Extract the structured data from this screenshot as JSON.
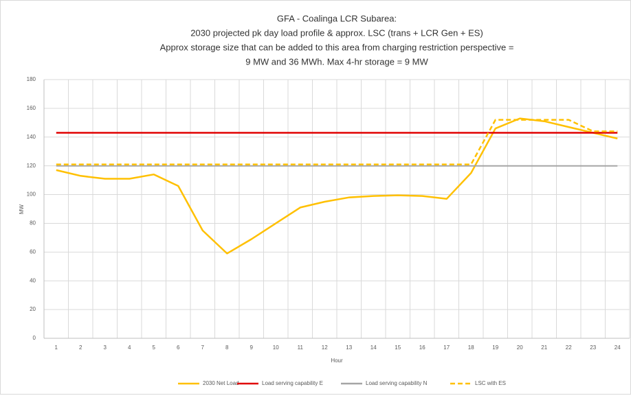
{
  "chart_data": {
    "type": "line",
    "title": [
      "GFA - Coalinga LCR Subarea:",
      "2030 projected pk day load profile & approx. LSC (trans + LCR Gen + ES)",
      "Approx storage size that can be added to this area from charging restriction perspective =",
      "9 MW and 36 MWh. Max 4-hr storage = 9 MW"
    ],
    "xlabel": "Hour",
    "ylabel": "MW",
    "categories": [
      "1",
      "2",
      "3",
      "4",
      "5",
      "6",
      "7",
      "8",
      "9",
      "10",
      "11",
      "12",
      "13",
      "14",
      "15",
      "16",
      "17",
      "18",
      "19",
      "20",
      "21",
      "22",
      "23",
      "24"
    ],
    "series": [
      {
        "name": "2030 Net Load",
        "color": "#ffc000",
        "values": [
          117,
          113,
          111,
          111,
          114,
          106,
          75,
          59,
          69,
          80,
          91,
          95,
          98,
          99,
          99.5,
          99,
          97,
          115,
          146,
          153,
          151,
          147,
          143,
          139
        ]
      },
      {
        "name": "Load serving capability E",
        "color": "#e00000",
        "values": [
          143,
          143,
          143,
          143,
          143,
          143,
          143,
          143,
          143,
          143,
          143,
          143,
          143,
          143,
          143,
          143,
          143,
          143,
          143,
          143,
          143,
          143,
          143,
          143
        ]
      },
      {
        "name": "Load serving capability N",
        "color": "#a5a5a5",
        "values": [
          120,
          120,
          120,
          120,
          120,
          120,
          120,
          120,
          120,
          120,
          120,
          120,
          120,
          120,
          120,
          120,
          120,
          120,
          120,
          120,
          120,
          120,
          120,
          120
        ]
      },
      {
        "name": "LSC with ES",
        "color": "#ffc000",
        "dashed": true,
        "values": [
          121,
          121,
          121,
          121,
          121,
          121,
          121,
          121,
          121,
          121,
          121,
          121,
          121,
          121,
          121,
          121,
          121,
          121,
          152,
          152,
          152,
          152,
          144,
          144
        ]
      }
    ],
    "ylim": [
      0,
      180
    ],
    "yticks": [
      0,
      20,
      40,
      60,
      80,
      100,
      120,
      140,
      160,
      180
    ],
    "grid": true
  }
}
